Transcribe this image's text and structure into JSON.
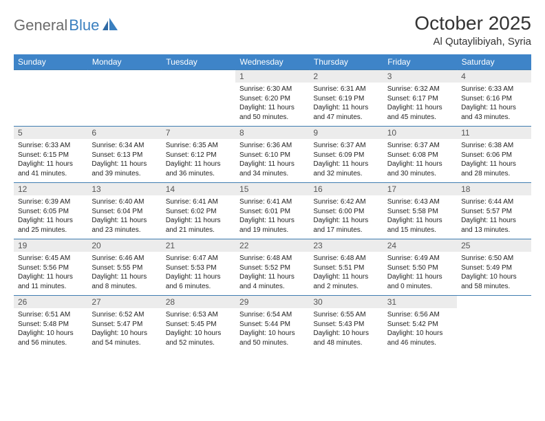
{
  "brand": {
    "word1": "General",
    "word2": "Blue"
  },
  "title": "October 2025",
  "location": "Al Qutaylibiyah, Syria",
  "weekdays": [
    "Sunday",
    "Monday",
    "Tuesday",
    "Wednesday",
    "Thursday",
    "Friday",
    "Saturday"
  ],
  "colors": {
    "header_bg": "#3e84c8",
    "header_text": "#ffffff",
    "row_border": "#3e7cb0",
    "daynum_bg": "#ececec",
    "daynum_text": "#555555",
    "body_text": "#222222",
    "title_text": "#333333",
    "logo_gray": "#6b6b6b",
    "logo_blue": "#3a7fbf",
    "page_bg": "#ffffff"
  },
  "typography": {
    "title_fontsize": 28,
    "location_fontsize": 15,
    "weekday_fontsize": 12,
    "daynum_fontsize": 12,
    "info_fontsize": 10,
    "font_family": "Arial"
  },
  "layout": {
    "columns": 7,
    "rows": 5,
    "first_day_column": 3,
    "days_in_month": 31
  },
  "days": [
    {
      "n": 1,
      "sunrise": "6:30 AM",
      "sunset": "6:20 PM",
      "daylight": "11 hours and 50 minutes."
    },
    {
      "n": 2,
      "sunrise": "6:31 AM",
      "sunset": "6:19 PM",
      "daylight": "11 hours and 47 minutes."
    },
    {
      "n": 3,
      "sunrise": "6:32 AM",
      "sunset": "6:17 PM",
      "daylight": "11 hours and 45 minutes."
    },
    {
      "n": 4,
      "sunrise": "6:33 AM",
      "sunset": "6:16 PM",
      "daylight": "11 hours and 43 minutes."
    },
    {
      "n": 5,
      "sunrise": "6:33 AM",
      "sunset": "6:15 PM",
      "daylight": "11 hours and 41 minutes."
    },
    {
      "n": 6,
      "sunrise": "6:34 AM",
      "sunset": "6:13 PM",
      "daylight": "11 hours and 39 minutes."
    },
    {
      "n": 7,
      "sunrise": "6:35 AM",
      "sunset": "6:12 PM",
      "daylight": "11 hours and 36 minutes."
    },
    {
      "n": 8,
      "sunrise": "6:36 AM",
      "sunset": "6:10 PM",
      "daylight": "11 hours and 34 minutes."
    },
    {
      "n": 9,
      "sunrise": "6:37 AM",
      "sunset": "6:09 PM",
      "daylight": "11 hours and 32 minutes."
    },
    {
      "n": 10,
      "sunrise": "6:37 AM",
      "sunset": "6:08 PM",
      "daylight": "11 hours and 30 minutes."
    },
    {
      "n": 11,
      "sunrise": "6:38 AM",
      "sunset": "6:06 PM",
      "daylight": "11 hours and 28 minutes."
    },
    {
      "n": 12,
      "sunrise": "6:39 AM",
      "sunset": "6:05 PM",
      "daylight": "11 hours and 25 minutes."
    },
    {
      "n": 13,
      "sunrise": "6:40 AM",
      "sunset": "6:04 PM",
      "daylight": "11 hours and 23 minutes."
    },
    {
      "n": 14,
      "sunrise": "6:41 AM",
      "sunset": "6:02 PM",
      "daylight": "11 hours and 21 minutes."
    },
    {
      "n": 15,
      "sunrise": "6:41 AM",
      "sunset": "6:01 PM",
      "daylight": "11 hours and 19 minutes."
    },
    {
      "n": 16,
      "sunrise": "6:42 AM",
      "sunset": "6:00 PM",
      "daylight": "11 hours and 17 minutes."
    },
    {
      "n": 17,
      "sunrise": "6:43 AM",
      "sunset": "5:58 PM",
      "daylight": "11 hours and 15 minutes."
    },
    {
      "n": 18,
      "sunrise": "6:44 AM",
      "sunset": "5:57 PM",
      "daylight": "11 hours and 13 minutes."
    },
    {
      "n": 19,
      "sunrise": "6:45 AM",
      "sunset": "5:56 PM",
      "daylight": "11 hours and 11 minutes."
    },
    {
      "n": 20,
      "sunrise": "6:46 AM",
      "sunset": "5:55 PM",
      "daylight": "11 hours and 8 minutes."
    },
    {
      "n": 21,
      "sunrise": "6:47 AM",
      "sunset": "5:53 PM",
      "daylight": "11 hours and 6 minutes."
    },
    {
      "n": 22,
      "sunrise": "6:48 AM",
      "sunset": "5:52 PM",
      "daylight": "11 hours and 4 minutes."
    },
    {
      "n": 23,
      "sunrise": "6:48 AM",
      "sunset": "5:51 PM",
      "daylight": "11 hours and 2 minutes."
    },
    {
      "n": 24,
      "sunrise": "6:49 AM",
      "sunset": "5:50 PM",
      "daylight": "11 hours and 0 minutes."
    },
    {
      "n": 25,
      "sunrise": "6:50 AM",
      "sunset": "5:49 PM",
      "daylight": "10 hours and 58 minutes."
    },
    {
      "n": 26,
      "sunrise": "6:51 AM",
      "sunset": "5:48 PM",
      "daylight": "10 hours and 56 minutes."
    },
    {
      "n": 27,
      "sunrise": "6:52 AM",
      "sunset": "5:47 PM",
      "daylight": "10 hours and 54 minutes."
    },
    {
      "n": 28,
      "sunrise": "6:53 AM",
      "sunset": "5:45 PM",
      "daylight": "10 hours and 52 minutes."
    },
    {
      "n": 29,
      "sunrise": "6:54 AM",
      "sunset": "5:44 PM",
      "daylight": "10 hours and 50 minutes."
    },
    {
      "n": 30,
      "sunrise": "6:55 AM",
      "sunset": "5:43 PM",
      "daylight": "10 hours and 48 minutes."
    },
    {
      "n": 31,
      "sunrise": "6:56 AM",
      "sunset": "5:42 PM",
      "daylight": "10 hours and 46 minutes."
    }
  ],
  "labels": {
    "sunrise": "Sunrise:",
    "sunset": "Sunset:",
    "daylight": "Daylight:"
  }
}
